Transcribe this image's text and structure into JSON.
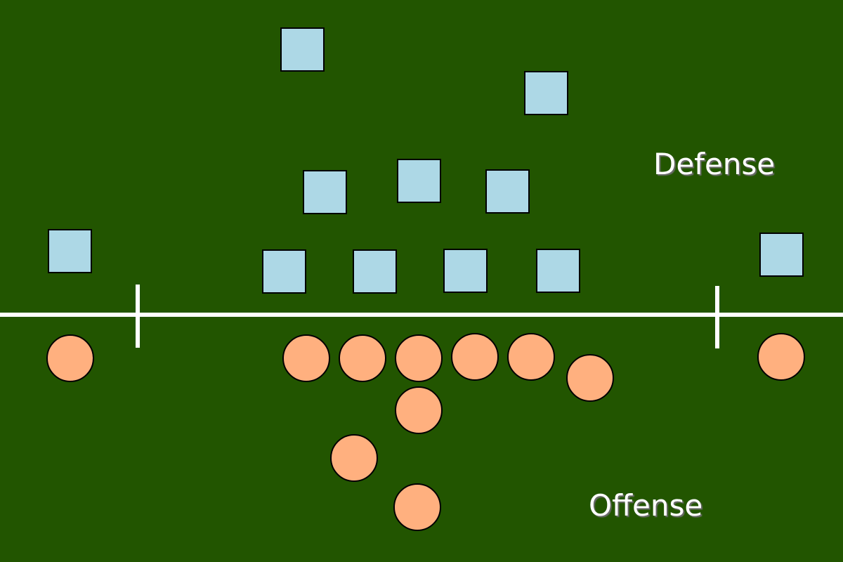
{
  "colors": {
    "field": "#225500",
    "defense_fill": "#add8e6",
    "offense_fill": "#ffb07f",
    "outline": "#000000",
    "line": "#ffffff"
  },
  "labels": {
    "defense": "Defense",
    "offense": "Offense"
  },
  "defense_player_count": 11,
  "offense_player_count": 11
}
